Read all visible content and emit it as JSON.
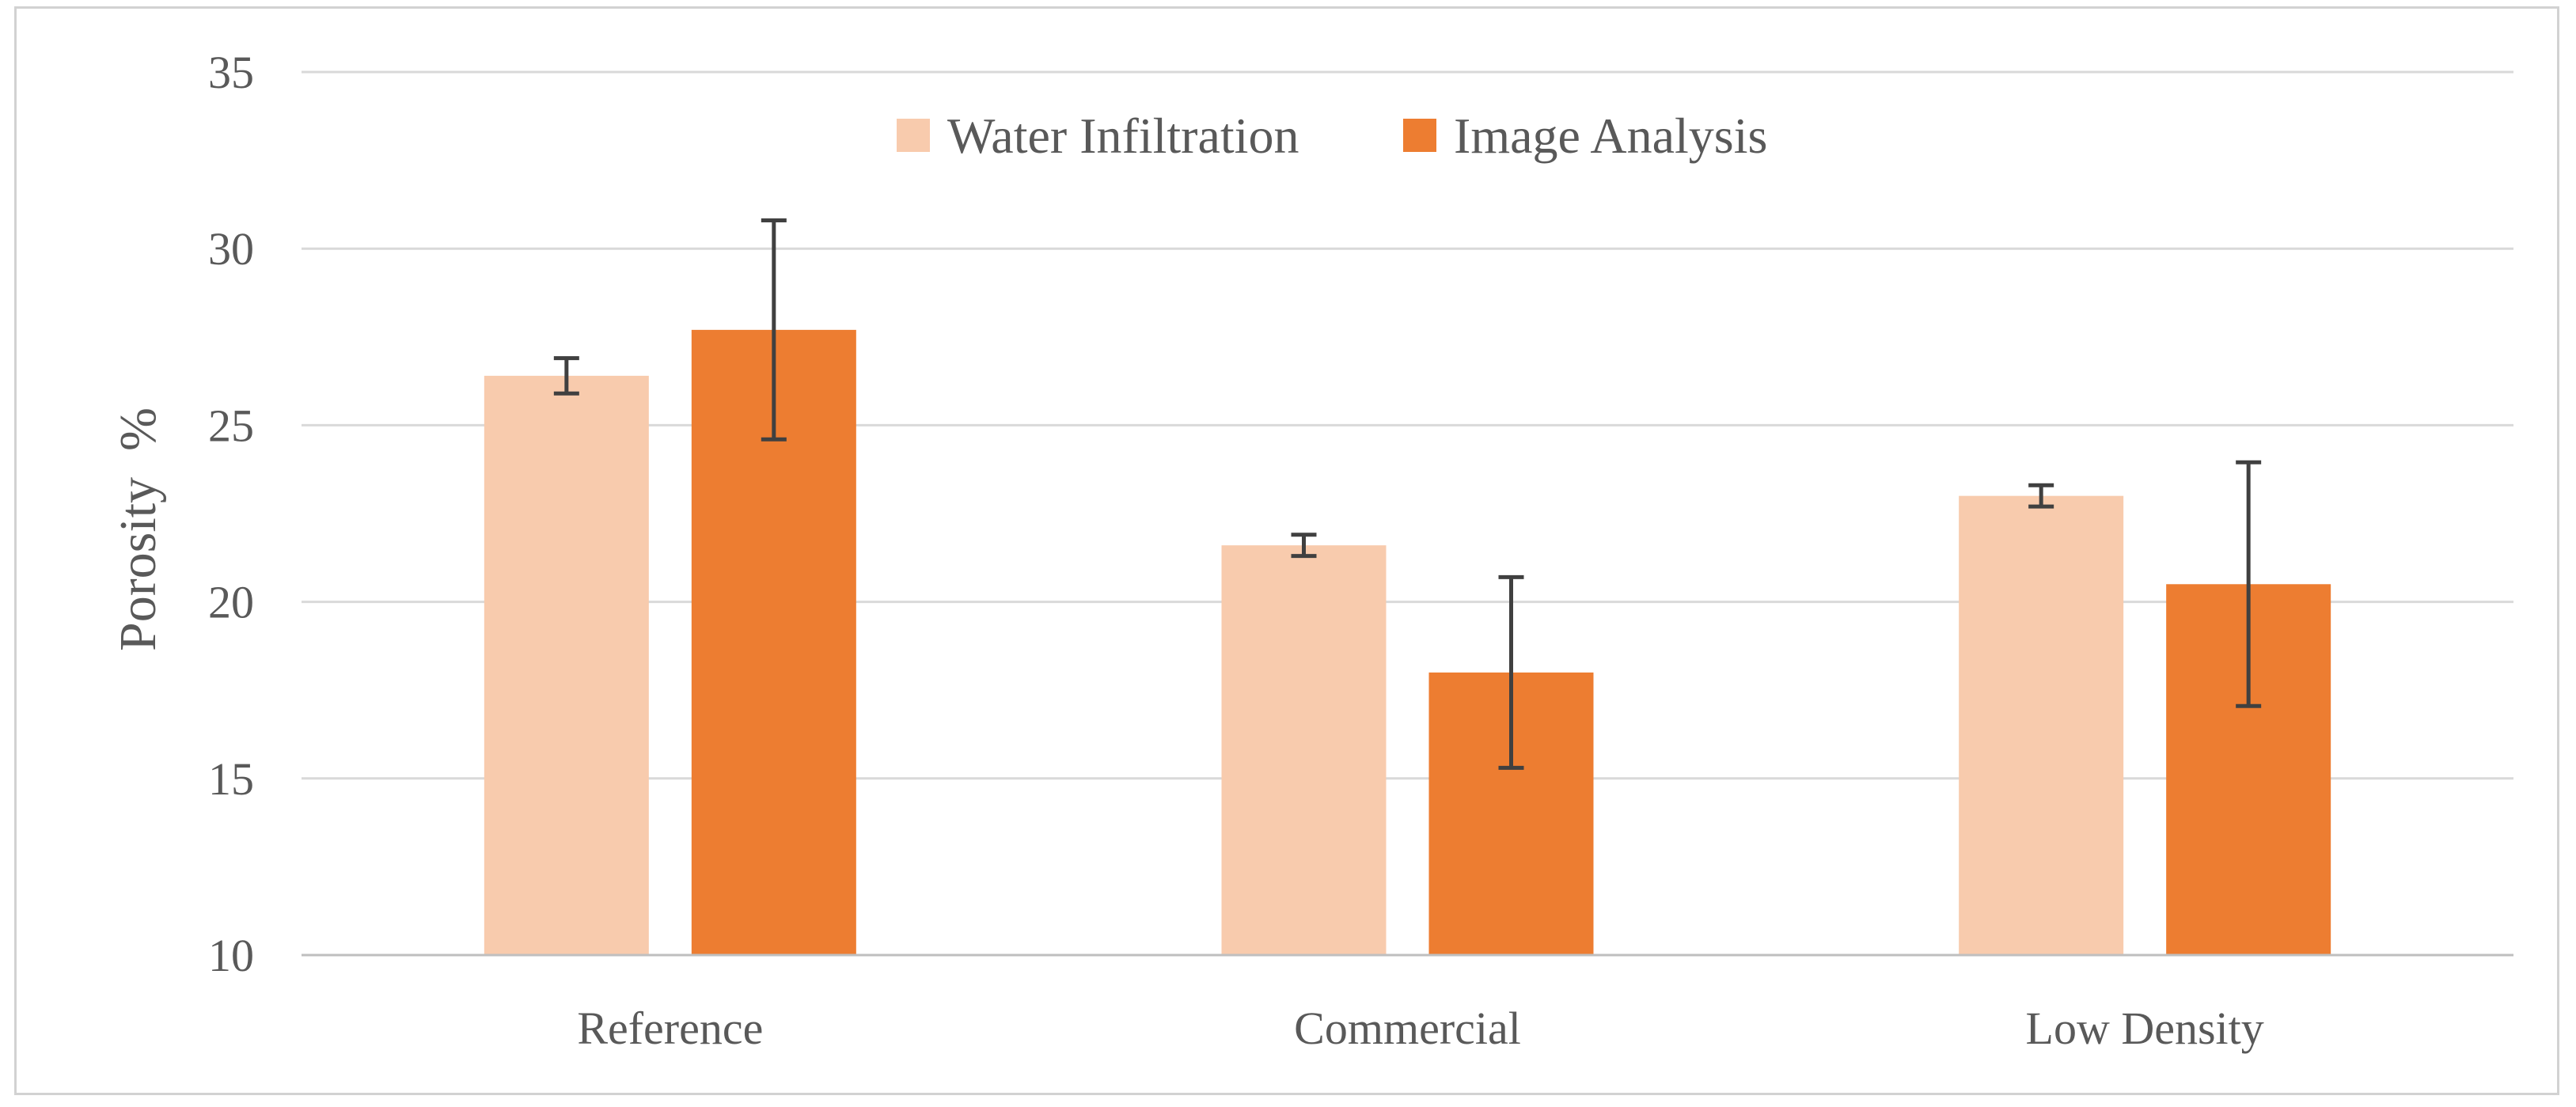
{
  "chart_data": {
    "type": "bar",
    "title": "",
    "xlabel": "",
    "ylabel": "Porosity  %",
    "ylim": [
      10,
      35
    ],
    "yticks": [
      10,
      15,
      20,
      25,
      30,
      35
    ],
    "grid": true,
    "legend_position": "top-center",
    "categories": [
      "Reference",
      "Commercial",
      "Low Density"
    ],
    "series": [
      {
        "name": "Water Infiltration",
        "color": "#F8CBAD",
        "values": [
          26.4,
          21.6,
          23.0
        ],
        "errors": [
          0.5,
          0.3,
          0.3
        ]
      },
      {
        "name": "Image Analysis",
        "color": "#ED7D31",
        "values": [
          27.7,
          18.0,
          20.5
        ],
        "errors": [
          3.1,
          2.7,
          3.45
        ]
      }
    ],
    "colors": {
      "grid": "#D9D9D9",
      "axis": "#BFBFBF",
      "text": "#595959",
      "error_bar": "#404040"
    }
  }
}
